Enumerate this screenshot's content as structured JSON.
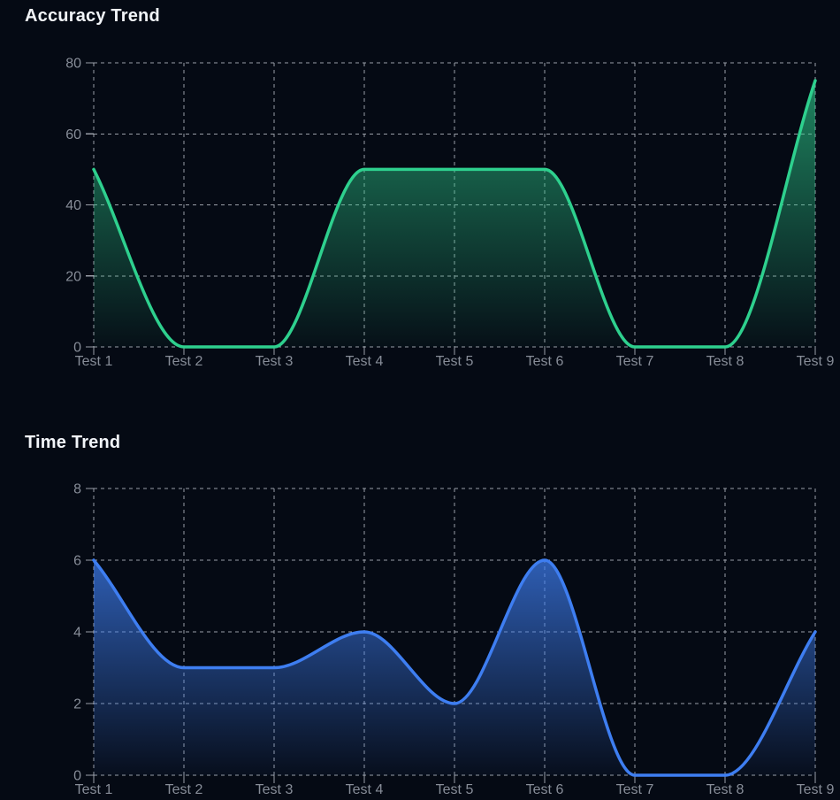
{
  "page": {
    "background_color": "#050a14",
    "title_text_color": "#f2f5f9"
  },
  "style_colors": {
    "grid": "#bfc4cc",
    "tick_text": "#878d98"
  },
  "chart_data": [
    {
      "type": "area",
      "title": "Accuracy Trend",
      "categories": [
        "Test 1",
        "Test 2",
        "Test 3",
        "Test 4",
        "Test 5",
        "Test 6",
        "Test 7",
        "Test 8",
        "Test 9"
      ],
      "values": [
        50,
        0,
        0,
        50,
        50,
        50,
        0,
        0,
        75
      ],
      "xlabel": "",
      "ylabel": "",
      "ylim": [
        0,
        80
      ],
      "yticks": [
        0,
        20,
        40,
        60,
        80
      ],
      "grid": "dashed",
      "legend": false,
      "smoothing": "monotone",
      "line_color": "#2ed08e",
      "fill_color": "#2ed08e",
      "fill_opacity_top": 0.62,
      "fill_opacity_bottom": 0.03
    },
    {
      "type": "area",
      "title": "Time Trend",
      "categories": [
        "Test 1",
        "Test 2",
        "Test 3",
        "Test 4",
        "Test 5",
        "Test 6",
        "Test 7",
        "Test 8",
        "Test 9"
      ],
      "values": [
        6,
        3,
        3,
        4,
        2,
        6,
        0,
        0,
        4
      ],
      "xlabel": "",
      "ylabel": "",
      "ylim": [
        0,
        8
      ],
      "yticks": [
        0,
        2,
        4,
        6,
        8
      ],
      "grid": "dashed",
      "legend": false,
      "smoothing": "monotone",
      "line_color": "#3e7ef1",
      "fill_color": "#3e7ef1",
      "fill_opacity_top": 0.72,
      "fill_opacity_bottom": 0.04
    }
  ]
}
